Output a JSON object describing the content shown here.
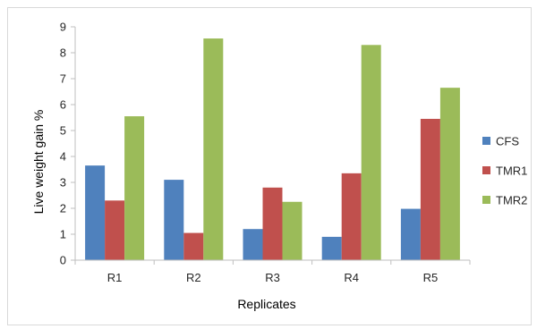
{
  "chart_data": {
    "type": "bar",
    "title": "",
    "xlabel": "Replicates",
    "ylabel": "Live weight gain %",
    "categories": [
      "R1",
      "R2",
      "R3",
      "R4",
      "R5"
    ],
    "ylim": [
      0,
      9
    ],
    "yticks": [
      0,
      1,
      2,
      3,
      4,
      5,
      6,
      7,
      8,
      9
    ],
    "grid": false,
    "legend_position": "right",
    "series": [
      {
        "name": "CFS",
        "color": "#4f81bd",
        "values": [
          3.65,
          3.1,
          1.2,
          0.9,
          1.98
        ]
      },
      {
        "name": "TMR1",
        "color": "#c0504d",
        "values": [
          2.3,
          1.05,
          2.8,
          3.35,
          5.45
        ]
      },
      {
        "name": "TMR2",
        "color": "#9bbb59",
        "values": [
          5.55,
          8.55,
          2.25,
          8.3,
          6.65
        ]
      }
    ]
  }
}
